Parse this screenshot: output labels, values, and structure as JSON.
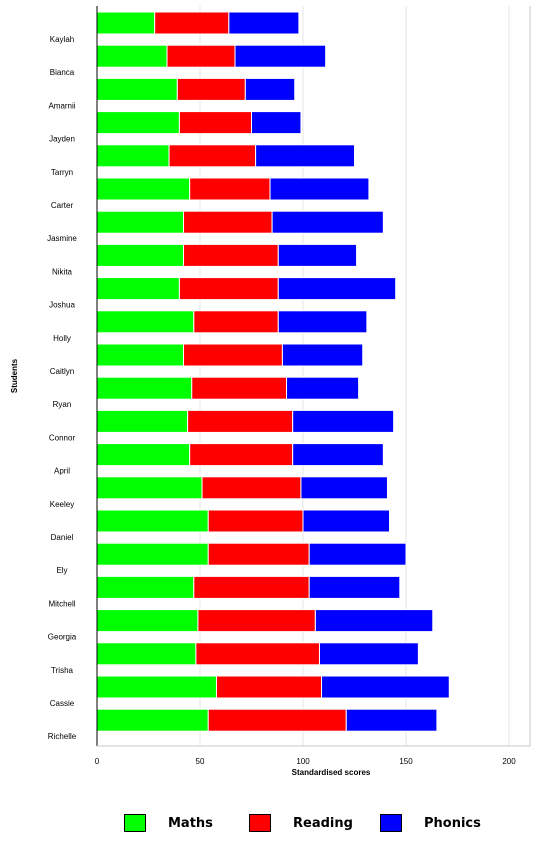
{
  "chart_data": {
    "type": "bar",
    "orientation": "horizontal",
    "stacked": true,
    "title": "",
    "xlabel": "Standardised scores",
    "ylabel": "Students",
    "xlim": [
      0,
      210
    ],
    "xticks": [
      "0",
      "50",
      "100",
      "150",
      "200"
    ],
    "grid": "vertical",
    "legend_position": "bottom",
    "categories": [
      "Kaylah",
      "Bianca",
      "Amarnii",
      "Jayden",
      "Tarryn",
      "Carter",
      "Jasmine",
      "Nikita",
      "Joshua",
      "Holly",
      "Caitlyn",
      "Ryan",
      "Connor",
      "April",
      "Keeley",
      "Daniel",
      "Ely",
      "Mitchell",
      "Georgia",
      "Trisha",
      "Cassie",
      "Richelle"
    ],
    "series": [
      {
        "name": "Maths",
        "color": "#00ff00",
        "values": [
          28,
          34,
          39,
          40,
          35,
          45,
          42,
          42,
          40,
          47,
          42,
          46,
          44,
          45,
          51,
          54,
          54,
          47,
          49,
          48,
          58,
          54
        ]
      },
      {
        "name": "Reading",
        "color": "#ff0000",
        "values": [
          36,
          33,
          33,
          35,
          42,
          39,
          43,
          46,
          48,
          41,
          48,
          46,
          51,
          50,
          48,
          46,
          49,
          56,
          57,
          60,
          51,
          67
        ]
      },
      {
        "name": "Phonics",
        "color": "#0000ff",
        "values": [
          34,
          44,
          24,
          24,
          48,
          48,
          54,
          38,
          57,
          43,
          39,
          35,
          49,
          44,
          42,
          42,
          47,
          44,
          57,
          48,
          62,
          44
        ]
      }
    ]
  }
}
